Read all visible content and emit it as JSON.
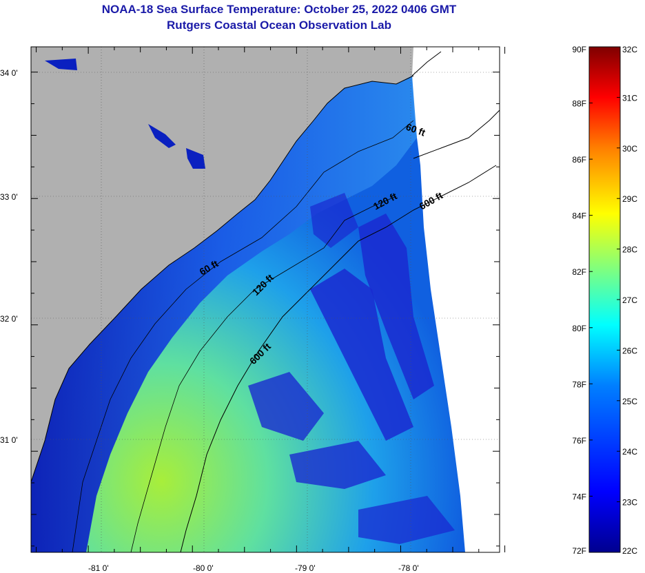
{
  "header": {
    "title": "NOAA-18 Sea Surface Temperature:  October 25, 2022 0406 GMT",
    "subtitle": "Rutgers Coastal Ocean Observation Lab"
  },
  "map": {
    "lon_range": [
      -81.55,
      -77.05
    ],
    "lat_range": [
      30.2,
      34.2
    ],
    "lon_ticks": [
      "-81 0'",
      "-80 0'",
      "-79 0'",
      "-78 0'"
    ],
    "lat_ticks": [
      "34 0'",
      "33 0'",
      "32 0'",
      "31 0'"
    ],
    "depth_labels": [
      "60 ft",
      "120 ft",
      "600 ft",
      "60 ft",
      "120 ft",
      "600 ft"
    ],
    "colors": {
      "land": "#b0b0b0",
      "no_data": "#ffffff",
      "coast": "#000000"
    }
  },
  "colorbar": {
    "fahrenheit": [
      "90F",
      "88F",
      "86F",
      "84F",
      "82F",
      "80F",
      "78F",
      "76F",
      "74F",
      "72F"
    ],
    "celsius": [
      "32C",
      "31C",
      "30C",
      "29C",
      "28C",
      "27C",
      "26C",
      "25C",
      "24C",
      "23C",
      "22C"
    ],
    "range_f": [
      72,
      90
    ],
    "range_c": [
      22,
      32
    ],
    "colormap": [
      "#7f0000",
      "#ff0000",
      "#ff7f00",
      "#ffff00",
      "#7fff7f",
      "#00ffff",
      "#007fff",
      "#0000ff",
      "#00008f"
    ]
  }
}
